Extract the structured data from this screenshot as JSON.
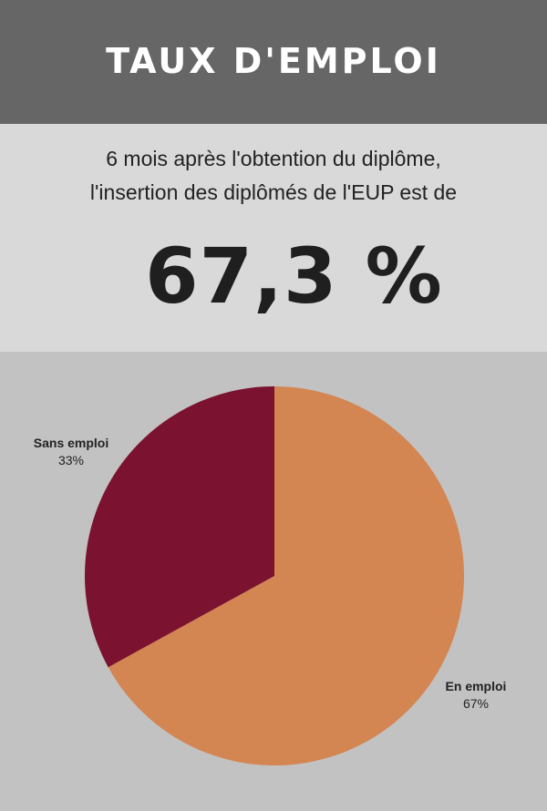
{
  "header": {
    "title": "TAUX D'EMPLOI"
  },
  "intro": {
    "line1": "6 mois après l'obtention du diplôme,",
    "line2": "l'insertion des diplômés de l'EUP est de",
    "big_value": "67,3 %"
  },
  "colors": {
    "header_bg": "#666666",
    "intro_bg": "#d9d9d9",
    "chart_bg": "#c2c2c2",
    "en_emploi": "#d38552",
    "sans_emploi": "#7b1230"
  },
  "chart_data": {
    "type": "pie",
    "slices": [
      {
        "label": "En emploi",
        "value": 67,
        "value_label": "67%",
        "color": "#d38552"
      },
      {
        "label": "Sans emploi",
        "value": 33,
        "value_label": "33%",
        "color": "#7b1230"
      }
    ]
  }
}
